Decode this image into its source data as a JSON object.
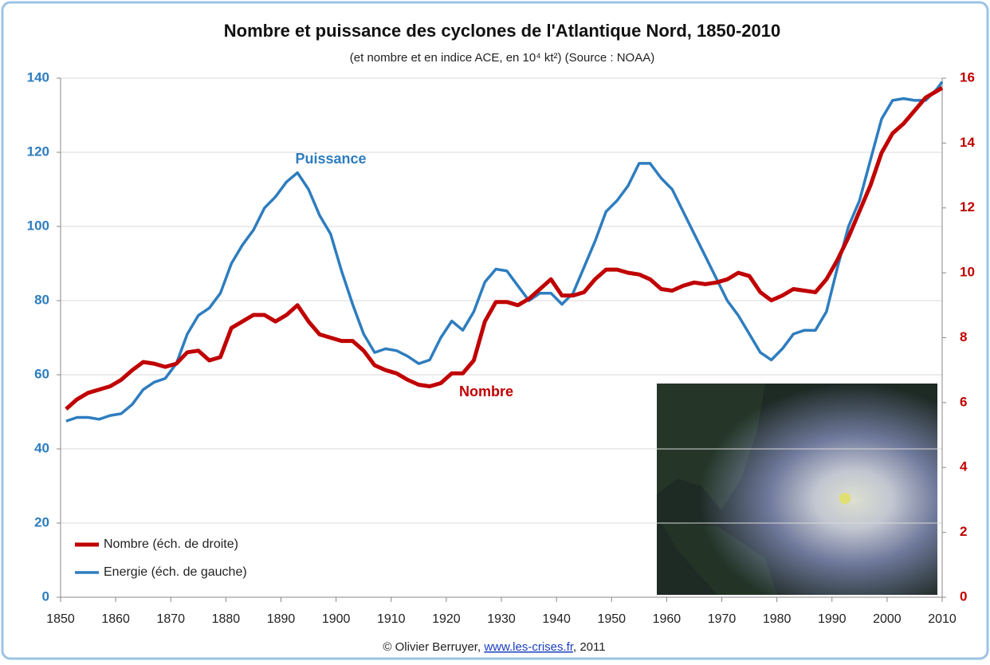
{
  "chart_data": {
    "type": "line",
    "title": "Nombre et puissance des cyclones de l'Atlantique Nord, 1850-2010",
    "subtitle": "(et nombre et en indice ACE, en 10⁴ kt²) (Source : NOAA)",
    "annotations": [
      "Puissance",
      "Nombre"
    ],
    "footer": {
      "prefix": "© Olivier Berruyer, ",
      "link": "www.les-crises.fr",
      "suffix": ",  2011"
    },
    "x": [
      1851,
      1853,
      1855,
      1857,
      1859,
      1861,
      1863,
      1865,
      1867,
      1869,
      1871,
      1873,
      1875,
      1877,
      1879,
      1881,
      1883,
      1885,
      1887,
      1889,
      1891,
      1893,
      1895,
      1897,
      1899,
      1901,
      1903,
      1905,
      1907,
      1909,
      1911,
      1913,
      1915,
      1917,
      1919,
      1921,
      1923,
      1925,
      1927,
      1929,
      1931,
      1933,
      1935,
      1937,
      1939,
      1941,
      1943,
      1945,
      1947,
      1949,
      1951,
      1953,
      1955,
      1957,
      1959,
      1961,
      1963,
      1965,
      1967,
      1969,
      1971,
      1973,
      1975,
      1977,
      1979,
      1981,
      1983,
      1985,
      1987,
      1989,
      1991,
      1993,
      1995,
      1997,
      1999,
      2001,
      2003,
      2005,
      2007,
      2009,
      2010
    ],
    "series": [
      {
        "name": "Nombre (éch. de droite)",
        "color": "#c00000",
        "axis": "y2",
        "values": [
          5.8,
          6.1,
          6.3,
          6.4,
          6.5,
          6.7,
          7.0,
          7.25,
          7.2,
          7.1,
          7.2,
          7.55,
          7.6,
          7.3,
          7.4,
          8.3,
          8.5,
          8.7,
          8.7,
          8.5,
          8.7,
          9.0,
          8.5,
          8.1,
          8.0,
          7.9,
          7.9,
          7.6,
          7.15,
          7.0,
          6.9,
          6.7,
          6.55,
          6.5,
          6.6,
          6.9,
          6.9,
          7.3,
          8.5,
          9.1,
          9.1,
          9.0,
          9.2,
          9.5,
          9.8,
          9.3,
          9.3,
          9.4,
          9.8,
          10.1,
          10.1,
          10.0,
          9.95,
          9.8,
          9.5,
          9.45,
          9.6,
          9.7,
          9.65,
          9.7,
          9.8,
          10.0,
          9.9,
          9.4,
          9.15,
          9.3,
          9.5,
          9.45,
          9.4,
          9.8,
          10.4,
          11.1,
          11.9,
          12.7,
          13.7,
          14.3,
          14.6,
          15.0,
          15.4,
          15.6,
          15.7
        ]
      },
      {
        "name": "Energie (éch. de gauche)",
        "color": "#2e7dbf",
        "values": [
          47.5,
          48.5,
          48.5,
          48,
          49,
          49.5,
          52,
          56,
          58,
          59,
          63,
          71,
          76,
          78,
          82,
          90,
          95,
          99,
          105,
          108,
          112,
          114.5,
          110,
          103,
          98,
          88,
          79,
          71,
          66,
          67,
          66.5,
          65,
          63,
          64,
          70,
          74.5,
          72,
          77,
          85,
          88.5,
          88,
          84,
          80,
          82,
          82,
          79,
          82,
          89,
          96,
          104,
          107,
          111,
          117,
          117,
          113,
          110,
          104,
          98,
          92,
          86,
          80,
          76,
          71,
          66,
          64,
          67,
          71,
          72,
          72,
          77,
          89,
          100,
          107,
          118,
          129,
          134,
          134.5,
          134,
          134,
          137,
          139
        ]
      }
    ],
    "xlim": [
      1850,
      2010
    ],
    "xticks": [
      1850,
      1860,
      1870,
      1880,
      1890,
      1900,
      1910,
      1920,
      1930,
      1940,
      1950,
      1960,
      1970,
      1980,
      1990,
      2000,
      2010
    ],
    "ylim": [
      0,
      140
    ],
    "yticks": [
      0,
      20,
      40,
      60,
      80,
      100,
      120,
      140
    ],
    "y2lim": [
      0,
      16
    ],
    "y2ticks": [
      0,
      2,
      4,
      6,
      8,
      10,
      12,
      14,
      16
    ],
    "grid": true,
    "legend": "lower left"
  }
}
